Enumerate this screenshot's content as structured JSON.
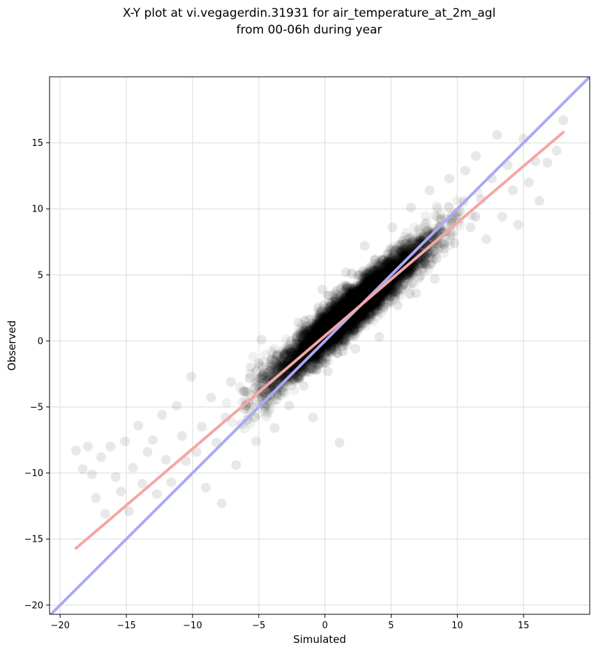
{
  "chart_data": {
    "type": "scatter",
    "title": "X-Y plot at vi.vegagerdin.31931 for air_temperature_at_2m_agl",
    "subtitle": "from 00-06h during year",
    "xlabel": "Simulated",
    "ylabel": "Observed",
    "xlim": [
      -20.8,
      20.0
    ],
    "ylim": [
      -20.7,
      20.0
    ],
    "xticks": [
      -20,
      -15,
      -10,
      -5,
      0,
      5,
      10,
      15
    ],
    "yticks": [
      -20,
      -15,
      -10,
      -5,
      0,
      5,
      10,
      15
    ],
    "xtick_labels": [
      "−20",
      "−15",
      "−10",
      "−5",
      "0",
      "5",
      "10",
      "15"
    ],
    "ytick_labels": [
      "−20",
      "−15",
      "−10",
      "−5",
      "0",
      "5",
      "10",
      "15"
    ],
    "grid": true,
    "points": [
      [
        -18.8,
        -8.3
      ],
      [
        -18.3,
        -9.7
      ],
      [
        -17.9,
        -8.0
      ],
      [
        -17.6,
        -10.1
      ],
      [
        -17.3,
        -11.9
      ],
      [
        -16.9,
        -8.8
      ],
      [
        -16.6,
        -13.1
      ],
      [
        -16.2,
        -8.0
      ],
      [
        -15.8,
        -10.3
      ],
      [
        -15.4,
        -11.4
      ],
      [
        -15.1,
        -7.6
      ],
      [
        -14.8,
        -12.9
      ],
      [
        -14.5,
        -9.6
      ],
      [
        -14.1,
        -6.4
      ],
      [
        -13.8,
        -10.8
      ],
      [
        -13.4,
        -8.4
      ],
      [
        -13.0,
        -7.5
      ],
      [
        -12.7,
        -11.6
      ],
      [
        -12.3,
        -5.6
      ],
      [
        -12.0,
        -9.0
      ],
      [
        -11.6,
        -10.7
      ],
      [
        -11.2,
        -4.9
      ],
      [
        -10.8,
        -7.2
      ],
      [
        -10.5,
        -9.1
      ],
      [
        -10.1,
        -2.7
      ],
      [
        -9.7,
        -8.4
      ],
      [
        -9.3,
        -6.5
      ],
      [
        -9.0,
        -11.1
      ],
      [
        -8.6,
        -4.3
      ],
      [
        -8.2,
        -7.7
      ],
      [
        -7.8,
        -12.3
      ],
      [
        -7.5,
        -5.8
      ],
      [
        -7.1,
        -3.1
      ],
      [
        -6.7,
        -9.4
      ],
      [
        -6.3,
        -6.3
      ],
      [
        -6.0,
        -4.9
      ],
      [
        -5.6,
        -2.0
      ],
      [
        -5.2,
        -7.6
      ],
      [
        -4.8,
        0.1
      ],
      [
        -4.5,
        -5.0
      ],
      [
        -4.1,
        -3.6
      ],
      [
        -3.8,
        -6.6
      ],
      [
        -3.4,
        -2.8
      ],
      [
        -3.0,
        -1.0
      ],
      [
        -2.7,
        -4.9
      ],
      [
        -2.3,
        -2.2
      ],
      [
        -2.0,
        1.4
      ],
      [
        -1.6,
        -3.4
      ],
      [
        -1.2,
        -1.1
      ],
      [
        -0.9,
        -5.8
      ],
      [
        -0.5,
        -0.3
      ],
      [
        -0.2,
        3.9
      ],
      [
        0.2,
        -2.3
      ],
      [
        0.5,
        0.9
      ],
      [
        0.9,
        2.3
      ],
      [
        1.1,
        -7.7
      ],
      [
        1.3,
        -0.4
      ],
      [
        1.6,
        5.2
      ],
      [
        2.0,
        1.8
      ],
      [
        2.3,
        -0.6
      ],
      [
        2.7,
        3.4
      ],
      [
        3.0,
        7.2
      ],
      [
        3.4,
        2.1
      ],
      [
        3.7,
        4.6
      ],
      [
        4.1,
        0.3
      ],
      [
        4.4,
        6.1
      ],
      [
        4.8,
        3.9
      ],
      [
        5.1,
        8.6
      ],
      [
        5.5,
        2.7
      ],
      [
        5.8,
        6.9
      ],
      [
        6.2,
        5.0
      ],
      [
        6.5,
        10.1
      ],
      [
        6.9,
        3.6
      ],
      [
        7.2,
        7.6
      ],
      [
        7.6,
        5.9
      ],
      [
        7.9,
        11.4
      ],
      [
        8.3,
        4.7
      ],
      [
        8.6,
        8.6
      ],
      [
        9.0,
        7.0
      ],
      [
        9.4,
        12.3
      ],
      [
        9.8,
        7.4
      ],
      [
        10.2,
        9.8
      ],
      [
        10.6,
        12.9
      ],
      [
        11.0,
        8.6
      ],
      [
        11.4,
        14.0
      ],
      [
        11.8,
        10.7
      ],
      [
        12.2,
        7.7
      ],
      [
        12.6,
        12.3
      ],
      [
        13.0,
        15.6
      ],
      [
        13.4,
        9.4
      ],
      [
        13.8,
        13.3
      ],
      [
        14.2,
        11.4
      ],
      [
        14.6,
        8.8
      ],
      [
        15.0,
        15.3
      ],
      [
        15.4,
        12.0
      ],
      [
        15.9,
        13.6
      ],
      [
        16.2,
        10.6
      ],
      [
        16.8,
        13.5
      ],
      [
        17.5,
        14.4
      ],
      [
        18.0,
        16.7
      ]
    ],
    "point_color": "#000000",
    "point_opacity": 0.06,
    "dense_band": {
      "description_free": true,
      "x_range": [
        -12.0,
        12.5
      ],
      "slope": 0.88,
      "intercept": 0.6,
      "spread": 1.5,
      "count": 6500
    },
    "lines": [
      {
        "x": [
          -20.8,
          20.0
        ],
        "y": [
          -20.8,
          20.0
        ],
        "color": "#aaaaf0"
      },
      {
        "x": [
          -18.8,
          18.0
        ],
        "y": [
          -15.7,
          15.8
        ],
        "color": "#f4a6a6"
      }
    ]
  }
}
